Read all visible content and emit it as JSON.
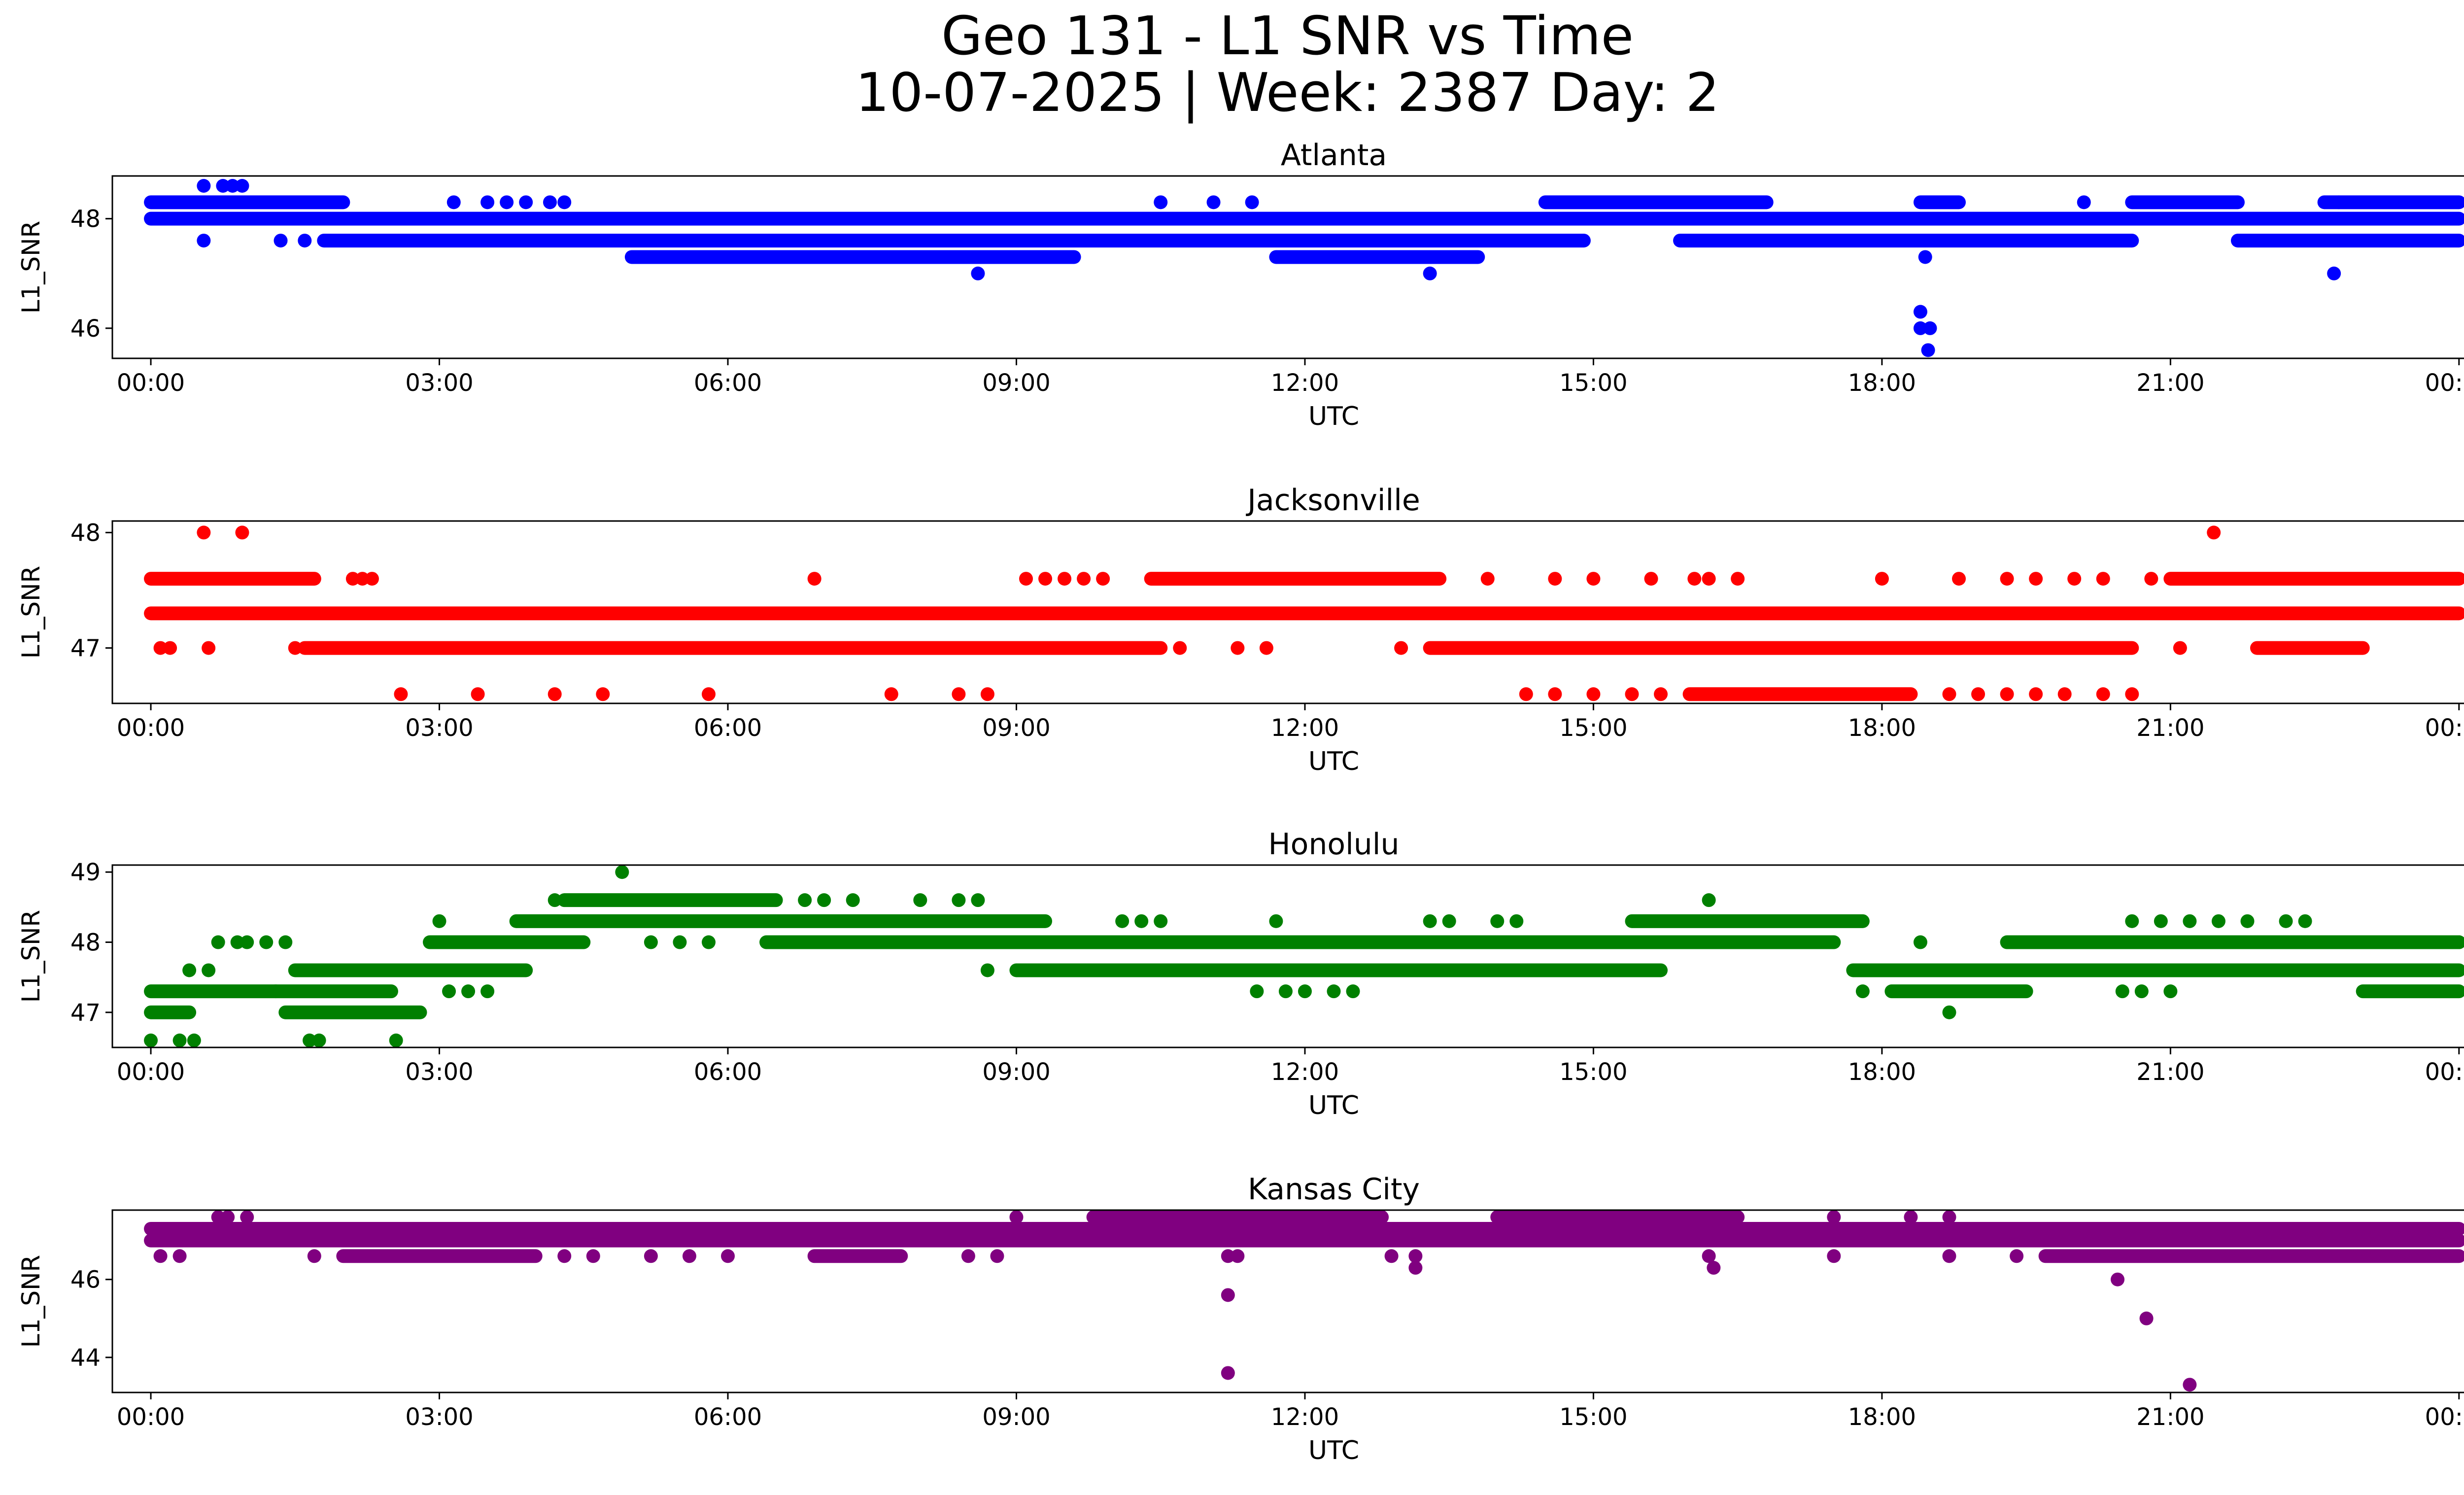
{
  "figure": {
    "title_line1": "Geo 131 - L1 SNR vs Time",
    "title_line2": "10-07-2025 | Week: 2387 Day: 2"
  },
  "chart_data": [
    {
      "type": "scatter",
      "title": "Atlanta",
      "xlabel": "UTC",
      "ylabel": "L1_SNR",
      "color": "#0000ff",
      "xlim_hours": [
        -0.4,
        25.0
      ],
      "ylim": [
        45.45,
        48.78
      ],
      "yticks": [
        46,
        48
      ],
      "xticks": [
        "00:00",
        "03:00",
        "06:00",
        "09:00",
        "12:00",
        "15:00",
        "18:00",
        "21:00",
        "00:00"
      ],
      "bands": [
        {
          "y": 48.3,
          "segments": [
            [
              0.0,
              2.0
            ],
            [
              14.5,
              16.8
            ],
            [
              18.4,
              18.8
            ],
            [
              20.6,
              21.7
            ],
            [
              22.6,
              24.0
            ]
          ]
        },
        {
          "y": 48.0,
          "segments": [
            [
              0.0,
              24.0
            ]
          ]
        },
        {
          "y": 47.6,
          "segments": [
            [
              1.8,
              14.9
            ],
            [
              15.9,
              20.6
            ],
            [
              21.7,
              24.0
            ]
          ]
        },
        {
          "y": 47.3,
          "segments": [
            [
              5.0,
              9.6
            ],
            [
              11.7,
              13.8
            ]
          ]
        }
      ],
      "points": [
        [
          0.55,
          48.6
        ],
        [
          0.75,
          48.6
        ],
        [
          0.85,
          48.6
        ],
        [
          0.95,
          48.6
        ],
        [
          0.55,
          47.6
        ],
        [
          1.35,
          47.6
        ],
        [
          1.6,
          47.6
        ],
        [
          3.15,
          48.3
        ],
        [
          3.5,
          48.3
        ],
        [
          3.7,
          48.3
        ],
        [
          3.9,
          48.3
        ],
        [
          4.15,
          48.3
        ],
        [
          4.3,
          48.3
        ],
        [
          10.5,
          48.3
        ],
        [
          11.05,
          48.3
        ],
        [
          11.45,
          48.3
        ],
        [
          8.6,
          47.0
        ],
        [
          13.3,
          47.0
        ],
        [
          20.1,
          48.3
        ],
        [
          22.75,
          48.3
        ],
        [
          22.7,
          47.0
        ],
        [
          18.45,
          47.3
        ],
        [
          18.4,
          46.3
        ],
        [
          18.4,
          46.0
        ],
        [
          18.5,
          46.0
        ],
        [
          18.48,
          45.6
        ]
      ]
    },
    {
      "type": "scatter",
      "title": "Jacksonville",
      "xlabel": "UTC",
      "ylabel": "L1_SNR",
      "color": "#ff0000",
      "xlim_hours": [
        -0.4,
        25.0
      ],
      "ylim": [
        46.52,
        48.1
      ],
      "yticks": [
        47,
        48
      ],
      "xticks": [
        "00:00",
        "03:00",
        "06:00",
        "09:00",
        "12:00",
        "15:00",
        "18:00",
        "21:00",
        "00:00"
      ],
      "bands": [
        {
          "y": 47.6,
          "segments": [
            [
              0.0,
              1.7
            ],
            [
              10.4,
              13.4
            ],
            [
              21.0,
              24.0
            ]
          ]
        },
        {
          "y": 47.3,
          "segments": [
            [
              0.0,
              24.0
            ]
          ]
        },
        {
          "y": 47.0,
          "segments": [
            [
              1.6,
              10.5
            ],
            [
              13.3,
              20.6
            ],
            [
              21.9,
              23.0
            ]
          ]
        },
        {
          "y": 46.6,
          "segments": [
            [
              16.0,
              18.3
            ]
          ]
        }
      ],
      "points": [
        [
          0.55,
          48.0
        ],
        [
          0.95,
          48.0
        ],
        [
          21.45,
          48.0
        ],
        [
          0.1,
          47.0
        ],
        [
          0.2,
          47.0
        ],
        [
          0.6,
          47.0
        ],
        [
          1.5,
          47.0
        ],
        [
          2.1,
          47.6
        ],
        [
          2.2,
          47.6
        ],
        [
          2.3,
          47.6
        ],
        [
          6.9,
          47.6
        ],
        [
          9.1,
          47.6
        ],
        [
          9.3,
          47.6
        ],
        [
          9.5,
          47.6
        ],
        [
          9.7,
          47.6
        ],
        [
          9.9,
          47.6
        ],
        [
          13.9,
          47.6
        ],
        [
          14.6,
          47.6
        ],
        [
          15.0,
          47.6
        ],
        [
          15.6,
          47.6
        ],
        [
          16.05,
          47.6
        ],
        [
          16.2,
          47.6
        ],
        [
          16.5,
          47.6
        ],
        [
          18.0,
          47.6
        ],
        [
          18.8,
          47.6
        ],
        [
          19.3,
          47.6
        ],
        [
          19.6,
          47.6
        ],
        [
          20.0,
          47.6
        ],
        [
          20.3,
          47.6
        ],
        [
          20.8,
          47.6
        ],
        [
          10.7,
          47.0
        ],
        [
          11.3,
          47.0
        ],
        [
          11.6,
          47.0
        ],
        [
          13.0,
          47.0
        ],
        [
          21.1,
          47.0
        ],
        [
          2.6,
          46.6
        ],
        [
          3.4,
          46.6
        ],
        [
          4.2,
          46.6
        ],
        [
          4.7,
          46.6
        ],
        [
          5.8,
          46.6
        ],
        [
          7.7,
          46.6
        ],
        [
          8.4,
          46.6
        ],
        [
          8.7,
          46.6
        ],
        [
          14.3,
          46.6
        ],
        [
          14.6,
          46.6
        ],
        [
          15.0,
          46.6
        ],
        [
          15.4,
          46.6
        ],
        [
          15.7,
          46.6
        ],
        [
          18.7,
          46.6
        ],
        [
          19.0,
          46.6
        ],
        [
          19.3,
          46.6
        ],
        [
          19.6,
          46.6
        ],
        [
          19.9,
          46.6
        ],
        [
          20.3,
          46.6
        ],
        [
          20.6,
          46.6
        ]
      ]
    },
    {
      "type": "scatter",
      "title": "Honolulu",
      "xlabel": "UTC",
      "ylabel": "L1_SNR",
      "color": "#008000",
      "xlim_hours": [
        -0.4,
        25.0
      ],
      "ylim": [
        46.5,
        49.1
      ],
      "yticks": [
        47,
        48,
        49
      ],
      "xticks": [
        "00:00",
        "03:00",
        "06:00",
        "09:00",
        "12:00",
        "15:00",
        "18:00",
        "21:00",
        "00:00"
      ],
      "bands": [
        {
          "y": 48.6,
          "segments": [
            [
              4.3,
              6.5
            ]
          ]
        },
        {
          "y": 48.3,
          "segments": [
            [
              3.8,
              9.3
            ],
            [
              15.4,
              17.8
            ]
          ]
        },
        {
          "y": 48.0,
          "segments": [
            [
              2.9,
              4.5
            ],
            [
              6.4,
              17.5
            ],
            [
              19.3,
              24.0
            ]
          ]
        },
        {
          "y": 47.6,
          "segments": [
            [
              1.5,
              3.9
            ],
            [
              9.0,
              15.7
            ],
            [
              17.7,
              24.0
            ]
          ]
        },
        {
          "y": 47.3,
          "segments": [
            [
              0.0,
              1.3
            ],
            [
              1.3,
              2.5
            ],
            [
              18.1,
              19.5
            ],
            [
              23.0,
              24.0
            ]
          ]
        },
        {
          "y": 47.0,
          "segments": [
            [
              0.0,
              0.4
            ],
            [
              1.4,
              2.8
            ]
          ]
        }
      ],
      "points": [
        [
          0.0,
          46.6
        ],
        [
          0.3,
          46.6
        ],
        [
          0.45,
          46.6
        ],
        [
          1.65,
          46.6
        ],
        [
          1.75,
          46.6
        ],
        [
          2.55,
          46.6
        ],
        [
          0.4,
          47.6
        ],
        [
          0.6,
          47.6
        ],
        [
          0.7,
          48.0
        ],
        [
          0.9,
          48.0
        ],
        [
          1.0,
          48.0
        ],
        [
          1.2,
          48.0
        ],
        [
          1.4,
          48.0
        ],
        [
          2.2,
          47.6
        ],
        [
          2.4,
          47.6
        ],
        [
          3.1,
          47.3
        ],
        [
          3.3,
          47.3
        ],
        [
          3.5,
          47.3
        ],
        [
          3.0,
          48.3
        ],
        [
          4.9,
          49.0
        ],
        [
          4.2,
          48.6
        ],
        [
          6.8,
          48.6
        ],
        [
          7.0,
          48.6
        ],
        [
          7.3,
          48.6
        ],
        [
          8.0,
          48.6
        ],
        [
          8.4,
          48.6
        ],
        [
          8.6,
          48.6
        ],
        [
          5.2,
          48.0
        ],
        [
          5.5,
          48.0
        ],
        [
          5.8,
          48.0
        ],
        [
          8.7,
          47.6
        ],
        [
          10.1,
          48.3
        ],
        [
          10.3,
          48.3
        ],
        [
          10.5,
          48.3
        ],
        [
          11.7,
          48.3
        ],
        [
          11.5,
          47.3
        ],
        [
          11.8,
          47.3
        ],
        [
          12.0,
          47.3
        ],
        [
          12.3,
          47.3
        ],
        [
          12.5,
          47.3
        ],
        [
          13.3,
          48.3
        ],
        [
          13.5,
          48.3
        ],
        [
          14.0,
          48.3
        ],
        [
          14.2,
          48.3
        ],
        [
          16.2,
          48.6
        ],
        [
          18.4,
          48.0
        ],
        [
          18.7,
          47.0
        ],
        [
          17.8,
          47.3
        ],
        [
          20.5,
          47.3
        ],
        [
          20.7,
          47.3
        ],
        [
          21.0,
          47.3
        ],
        [
          20.6,
          48.3
        ],
        [
          20.9,
          48.3
        ],
        [
          21.2,
          48.3
        ],
        [
          21.5,
          48.3
        ],
        [
          21.8,
          48.3
        ],
        [
          22.2,
          48.3
        ],
        [
          22.4,
          48.3
        ],
        [
          23.2,
          48.0
        ],
        [
          24.0,
          48.0
        ]
      ]
    },
    {
      "type": "scatter",
      "title": "Kansas City",
      "xlabel": "UTC",
      "ylabel": "L1_SNR",
      "color": "#800080",
      "xlim_hours": [
        -0.4,
        25.0
      ],
      "ylim": [
        43.1,
        47.78
      ],
      "yticks": [
        44,
        46
      ],
      "xticks": [
        "00:00",
        "03:00",
        "06:00",
        "09:00",
        "12:00",
        "15:00",
        "18:00",
        "21:00",
        "00:00"
      ],
      "bands": [
        {
          "y": 47.6,
          "segments": [
            [
              9.8,
              12.8
            ],
            [
              14.0,
              16.5
            ]
          ]
        },
        {
          "y": 47.3,
          "segments": [
            [
              0.0,
              24.0
            ]
          ]
        },
        {
          "y": 47.0,
          "segments": [
            [
              0.0,
              24.0
            ]
          ]
        },
        {
          "y": 46.6,
          "segments": [
            [
              2.0,
              4.0
            ],
            [
              6.9,
              7.8
            ],
            [
              19.7,
              24.0
            ]
          ]
        }
      ],
      "points": [
        [
          0.7,
          47.6
        ],
        [
          0.8,
          47.6
        ],
        [
          1.0,
          47.6
        ],
        [
          9.0,
          47.6
        ],
        [
          17.5,
          47.6
        ],
        [
          18.3,
          47.6
        ],
        [
          18.7,
          47.6
        ],
        [
          0.1,
          46.6
        ],
        [
          0.3,
          46.6
        ],
        [
          1.7,
          46.6
        ],
        [
          4.3,
          46.6
        ],
        [
          4.6,
          46.6
        ],
        [
          5.2,
          46.6
        ],
        [
          5.6,
          46.6
        ],
        [
          6.0,
          46.6
        ],
        [
          8.5,
          46.6
        ],
        [
          8.8,
          46.6
        ],
        [
          11.2,
          46.6
        ],
        [
          11.3,
          46.6
        ],
        [
          12.9,
          46.6
        ],
        [
          13.15,
          46.6
        ],
        [
          16.2,
          46.6
        ],
        [
          17.5,
          46.6
        ],
        [
          18.7,
          46.6
        ],
        [
          19.4,
          46.6
        ],
        [
          13.15,
          46.3
        ],
        [
          16.25,
          46.3
        ],
        [
          11.2,
          45.6
        ],
        [
          11.2,
          43.6
        ],
        [
          20.45,
          46.0
        ],
        [
          20.75,
          45.0
        ],
        [
          21.2,
          43.3
        ],
        [
          22.1,
          47.3
        ],
        [
          22.3,
          47.3
        ],
        [
          22.6,
          47.3
        ],
        [
          22.9,
          47.3
        ],
        [
          23.2,
          47.3
        ]
      ]
    }
  ]
}
